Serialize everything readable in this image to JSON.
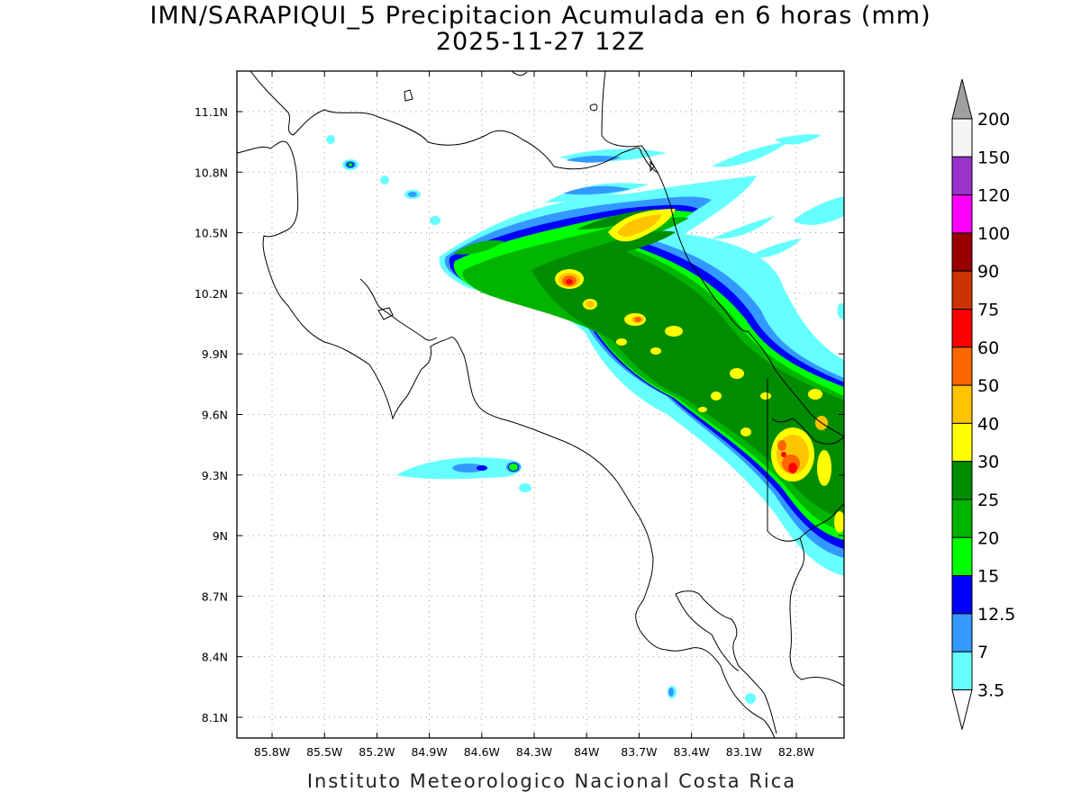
{
  "title": {
    "line1": "IMN/SARAPIQUI_5 Precipitacion Acumulada en 6 horas (mm)",
    "line2": "2025-11-27 12Z"
  },
  "credit": "Instituto Meteorologico Nacional Costa Rica",
  "axes": {
    "lon_ticks": [
      "85.8W",
      "85.5W",
      "85.2W",
      "84.9W",
      "84.6W",
      "84.3W",
      "84W",
      "83.7W",
      "83.4W",
      "83.1W",
      "82.8W"
    ],
    "lat_ticks": [
      "11.1N",
      "10.8N",
      "10.5N",
      "10.2N",
      "9.9N",
      "9.6N",
      "9.3N",
      "9N",
      "8.7N",
      "8.4N",
      "8.1N"
    ]
  },
  "colorbar": {
    "labels": [
      "200",
      "150",
      "120",
      "100",
      "90",
      "75",
      "60",
      "50",
      "40",
      "30",
      "25",
      "20",
      "15",
      "12.5",
      "7",
      "3.5"
    ],
    "colors": [
      "#a0a0a0",
      "#f5f5f5",
      "#9933cc",
      "#ff00ff",
      "#990000",
      "#cc3300",
      "#ff0000",
      "#ff6600",
      "#ffc400",
      "#ffff00",
      "#008c00",
      "#00b400",
      "#00ff00",
      "#0000ff",
      "#3399ff",
      "#66ffff"
    ]
  },
  "precip_palette": {
    "3.5": "#66ffff",
    "7": "#3399ff",
    "12.5": "#0000ff",
    "15": "#00ff00",
    "20": "#00b400",
    "25": "#008c00",
    "30": "#ffff00",
    "40": "#ffc400",
    "50": "#ff6600",
    "60": "#ff0000"
  }
}
